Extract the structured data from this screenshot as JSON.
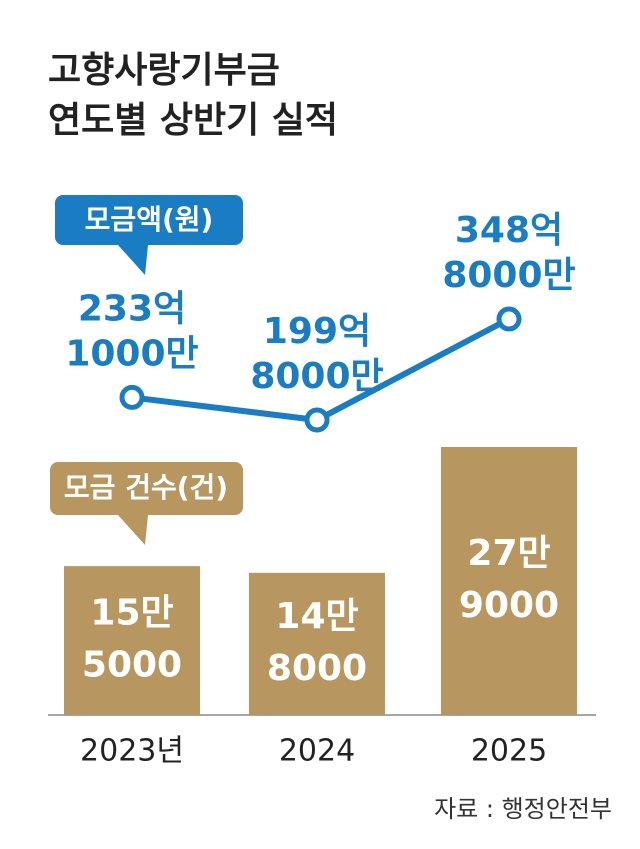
{
  "chart_data": {
    "type": "bar",
    "title": [
      "고향사랑기부금",
      "연도별 상반기 실적"
    ],
    "categories": [
      "2023년",
      "2024",
      "2025"
    ],
    "series": [
      {
        "name": "모금 건수(건)",
        "type": "bar",
        "color": "#b8965f",
        "values": [
          155000,
          148000,
          279000
        ],
        "value_labels": [
          [
            "15만",
            "5000"
          ],
          [
            "14만",
            "8000"
          ],
          [
            "27만",
            "9000"
          ]
        ]
      },
      {
        "name": "모금액(원)",
        "type": "line",
        "color": "#1a7dc4",
        "values": [
          23310000000,
          19980000000,
          34880000000
        ],
        "value_labels": [
          [
            "233억",
            "1000만"
          ],
          [
            "199억",
            "8000만"
          ],
          [
            "348억",
            "8000만"
          ]
        ]
      }
    ],
    "source": "자료 : 행정안전부"
  }
}
